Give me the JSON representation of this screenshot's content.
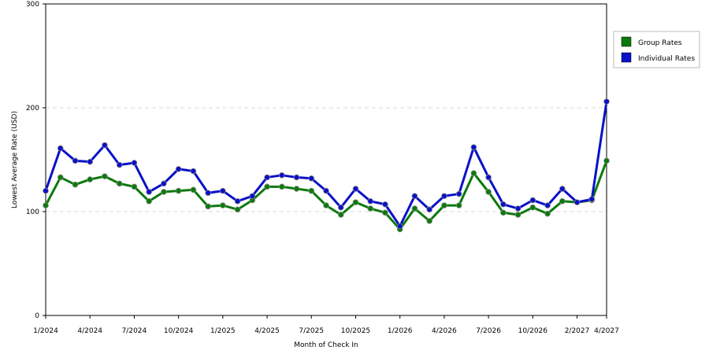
{
  "chart_data": {
    "type": "line",
    "xlabel": "Month of Check In",
    "ylabel": "Lowest Average Rate (USD)",
    "ylim": [
      0,
      300
    ],
    "yticks": [
      0,
      100,
      200,
      300
    ],
    "grid": "horizontal dashed",
    "legend_position": "right",
    "x_tick_labels": [
      "1/2024",
      "4/2024",
      "7/2024",
      "10/2024",
      "1/2025",
      "4/2025",
      "7/2025",
      "10/2025",
      "1/2026",
      "4/2026",
      "7/2026",
      "10/2026",
      "2/2027",
      "4/2027"
    ],
    "x_tick_index": [
      0,
      3,
      6,
      9,
      12,
      15,
      18,
      21,
      24,
      27,
      30,
      33,
      36,
      38
    ],
    "x": [
      "1/2024",
      "2/2024",
      "3/2024",
      "4/2024",
      "5/2024",
      "6/2024",
      "7/2024",
      "8/2024",
      "9/2024",
      "10/2024",
      "11/2024",
      "12/2024",
      "1/2025",
      "2/2025",
      "3/2025",
      "4/2025",
      "5/2025",
      "6/2025",
      "7/2025",
      "8/2025",
      "9/2025",
      "10/2025",
      "11/2025",
      "12/2025",
      "1/2026",
      "2/2026",
      "3/2026",
      "4/2026",
      "5/2026",
      "6/2026",
      "7/2026",
      "8/2026",
      "9/2026",
      "10/2026",
      "11/2026",
      "12/2026",
      "2/2027",
      "3/2027",
      "4/2027"
    ],
    "series": [
      {
        "name": "Group Rates",
        "color": "#0b7a0b",
        "values": [
          106,
          133,
          126,
          131,
          134,
          127,
          124,
          110,
          119,
          120,
          121,
          105,
          106,
          102,
          111,
          124,
          124,
          122,
          120,
          106,
          97,
          109,
          103,
          99,
          83,
          103,
          91,
          106,
          106,
          137,
          119,
          99,
          97,
          104,
          98,
          110,
          109,
          111,
          149
        ]
      },
      {
        "name": "Individual Rates",
        "color": "#0a10c8",
        "values": [
          120,
          161,
          149,
          148,
          164,
          145,
          147,
          119,
          127,
          141,
          139,
          118,
          120,
          110,
          115,
          133,
          135,
          133,
          132,
          120,
          104,
          122,
          110,
          107,
          86,
          115,
          102,
          115,
          117,
          162,
          133,
          107,
          103,
          111,
          106,
          122,
          109,
          112,
          206
        ]
      }
    ]
  }
}
